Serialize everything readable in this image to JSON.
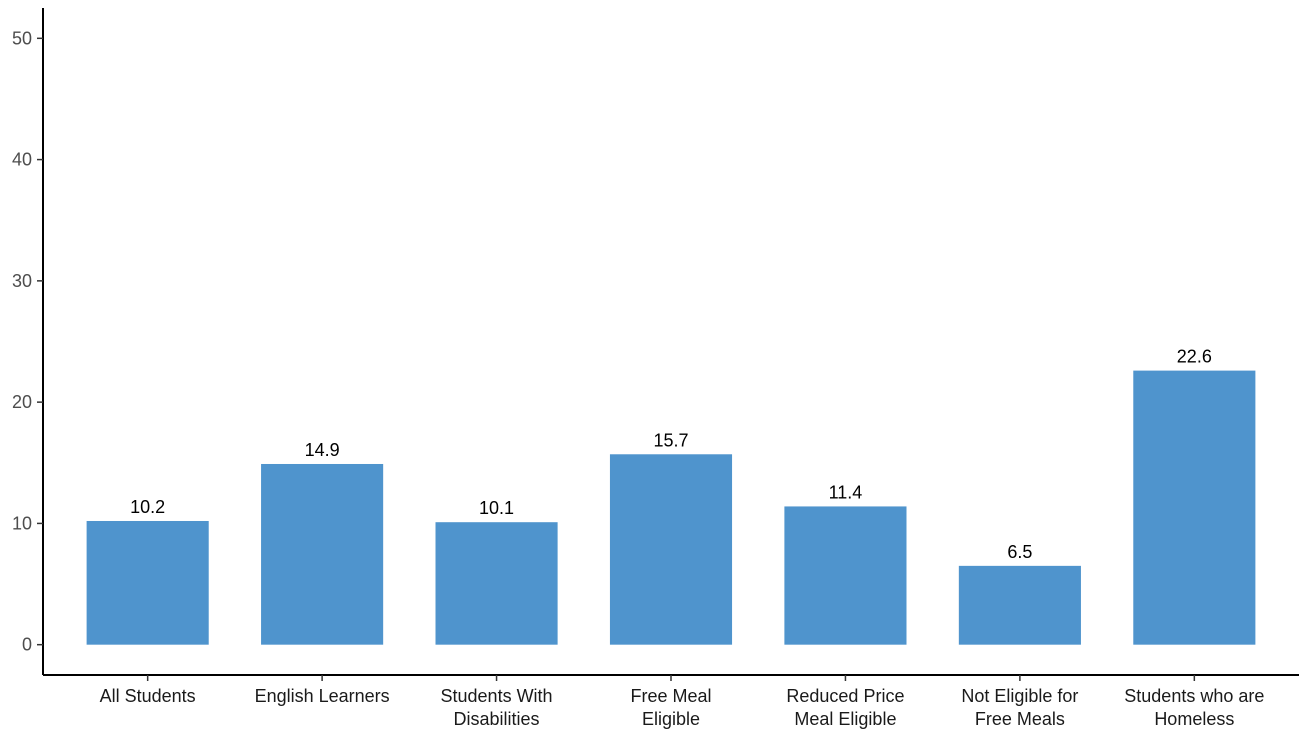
{
  "chart_data": {
    "type": "bar",
    "categories": [
      [
        "All Students"
      ],
      [
        "English Learners"
      ],
      [
        "Students With",
        "Disabilities"
      ],
      [
        "Free Meal",
        "Eligible"
      ],
      [
        "Reduced Price",
        "Meal Eligible"
      ],
      [
        "Not Eligible for",
        "Free Meals"
      ],
      [
        "Students who are",
        "Homeless"
      ]
    ],
    "values": [
      10.2,
      14.9,
      10.1,
      15.7,
      11.4,
      6.5,
      22.6
    ],
    "value_labels": [
      "10.2",
      "14.9",
      "10.1",
      "15.7",
      "11.4",
      "6.5",
      "22.6"
    ],
    "yticks": [
      0,
      10,
      20,
      30,
      40,
      50
    ],
    "ytick_labels": [
      "0",
      "10",
      "20",
      "30",
      "40",
      "50"
    ],
    "ylim": [
      -2.5,
      52.5
    ],
    "bar_color": "#4f94cd",
    "title": "",
    "xlabel": "",
    "ylabel": "",
    "grid": false,
    "legend": "none"
  }
}
